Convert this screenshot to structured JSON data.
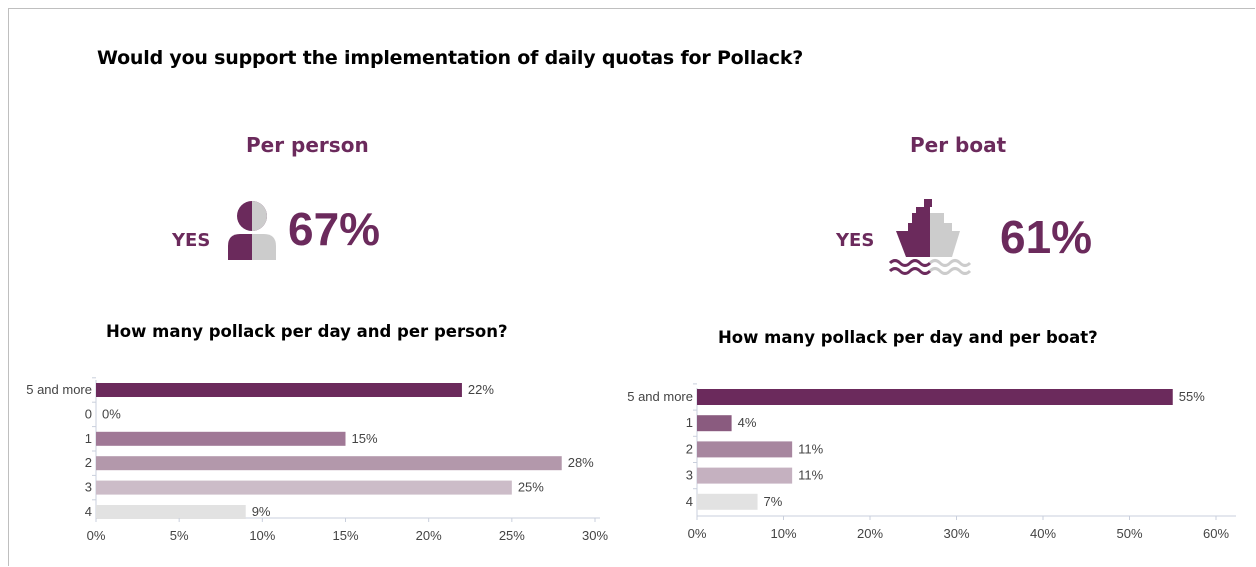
{
  "title": "Would you support the implementation of daily quotas for Pollack?",
  "per_person": {
    "heading": "Per person",
    "yes_label": "YES",
    "value_label": "67%",
    "value": 67,
    "icon": "person-icon"
  },
  "per_boat": {
    "heading": "Per boat",
    "yes_label": "YES",
    "value_label": "61%",
    "value": 61,
    "icon": "ship-icon"
  },
  "chart_data": [
    {
      "type": "bar",
      "orientation": "horizontal",
      "title": "How many pollack per day and per person?",
      "categories": [
        "5 and more",
        "0",
        "1",
        "2",
        "3",
        "4"
      ],
      "values": [
        22,
        0,
        15,
        28,
        25,
        9
      ],
      "data_labels": [
        "22%",
        "0%",
        "15%",
        "28%",
        "25%",
        "9%"
      ],
      "xlim": [
        0,
        30
      ],
      "x_ticks": [
        0,
        5,
        10,
        15,
        20,
        25,
        30
      ],
      "x_tick_labels": [
        "0%",
        "5%",
        "10%",
        "15%",
        "20%",
        "25%",
        "30%"
      ],
      "colors": [
        "#6b2a5c",
        "#a07896",
        "#a07896",
        "#b398ab",
        "#ccbcc8",
        "#e2e2e2"
      ],
      "grid": false
    },
    {
      "type": "bar",
      "orientation": "horizontal",
      "title": "How many pollack per day and per boat?",
      "categories": [
        "5 and more",
        "1",
        "2",
        "3",
        "4"
      ],
      "values": [
        55,
        4,
        11,
        11,
        7
      ],
      "data_labels": [
        "55%",
        "4%",
        "11%",
        "11%",
        "7%"
      ],
      "xlim": [
        0,
        60
      ],
      "x_ticks": [
        0,
        10,
        20,
        30,
        40,
        50,
        60
      ],
      "x_tick_labels": [
        "0%",
        "10%",
        "20%",
        "30%",
        "40%",
        "50%",
        "60%"
      ],
      "colors": [
        "#6b2a5c",
        "#8a5b7f",
        "#a7869f",
        "#c5b1c0",
        "#e2e2e2"
      ],
      "grid": false
    }
  ]
}
